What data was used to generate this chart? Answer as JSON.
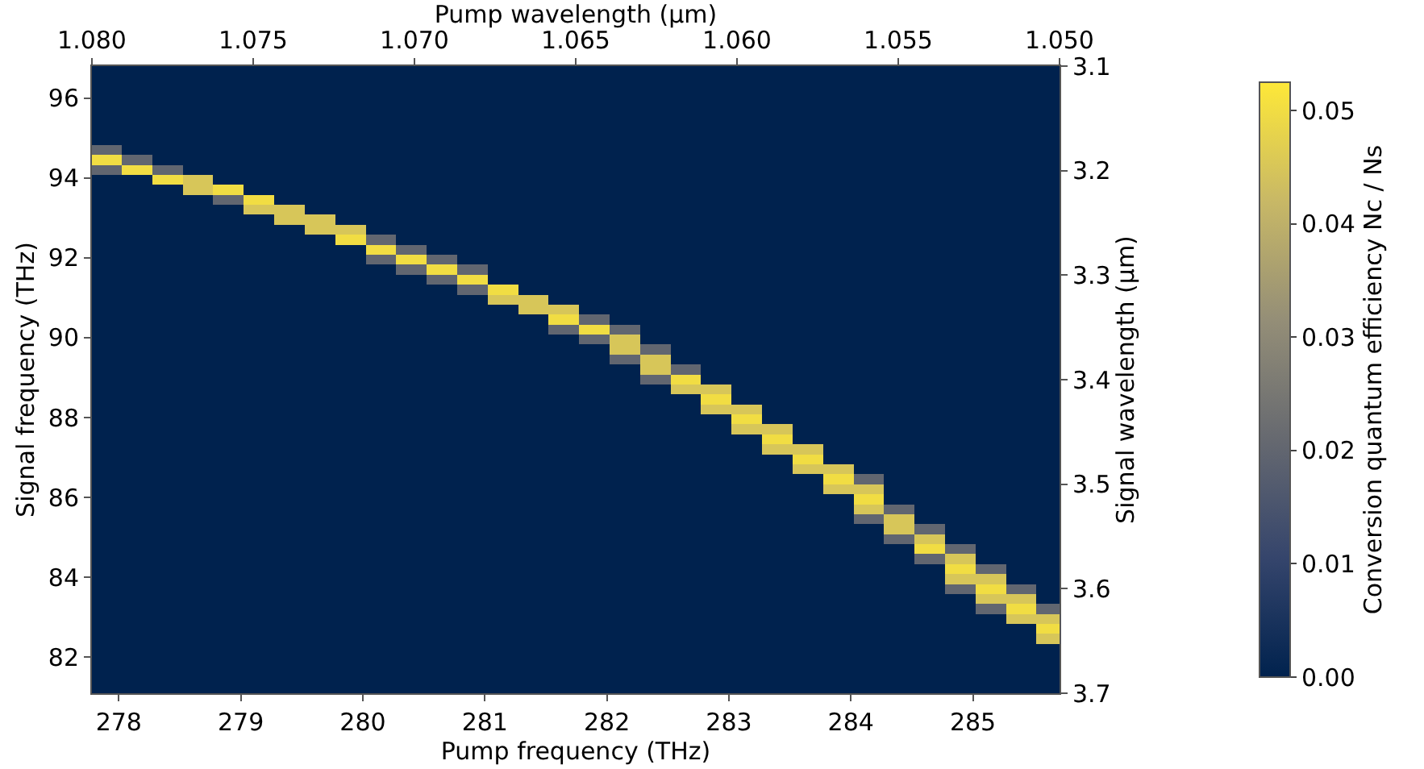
{
  "chart_data": {
    "type": "heatmap",
    "xlabel": "Pump frequency (THz)",
    "ylabel": "Signal frequency (THz)",
    "x2label": "Pump wavelength (µm)",
    "y2label": "Signal wavelength (µm)",
    "clabel": "Conversion quantum efficiency Nc / Ns",
    "x": [
      277.9,
      278.15,
      278.4,
      278.65,
      278.9,
      279.15,
      279.4,
      279.65,
      279.9,
      280.15,
      280.4,
      280.65,
      280.9,
      281.15,
      281.4,
      281.65,
      281.9,
      282.15,
      282.4,
      282.65,
      282.9,
      283.15,
      283.4,
      283.65,
      283.9,
      284.15,
      284.4,
      284.65,
      284.9,
      285.15,
      285.4,
      285.65
    ],
    "y": [
      96.7,
      96.45,
      96.2,
      95.95,
      95.7,
      95.45,
      95.2,
      94.95,
      94.7,
      94.45,
      94.2,
      93.95,
      93.7,
      93.45,
      93.2,
      92.95,
      92.7,
      92.45,
      92.2,
      91.95,
      91.7,
      91.45,
      91.2,
      90.95,
      90.7,
      90.45,
      90.2,
      89.95,
      89.7,
      89.45,
      89.2,
      88.95,
      88.7,
      88.45,
      88.2,
      87.95,
      87.7,
      87.45,
      87.2,
      86.95,
      86.7,
      86.45,
      86.2,
      85.95,
      85.7,
      85.45,
      85.2,
      84.95,
      84.7,
      84.45,
      84.2,
      83.95,
      83.7,
      83.45,
      83.2,
      82.95,
      82.7,
      82.45,
      82.2,
      81.95,
      81.7,
      81.45,
      81.2
    ],
    "cells": [
      [
        0,
        0,
        0,
        0,
        0,
        0,
        0,
        0,
        0,
        0,
        0,
        0,
        0,
        0,
        0,
        0,
        0,
        0,
        0,
        0,
        0,
        0,
        0,
        0,
        0,
        0,
        0,
        0,
        0,
        0,
        0,
        0
      ],
      [
        0,
        0,
        0,
        0,
        0,
        0,
        0,
        0,
        0,
        0,
        0,
        0,
        0,
        0,
        0,
        0,
        0,
        0,
        0,
        0,
        0,
        0,
        0,
        0,
        0,
        0,
        0,
        0,
        0,
        0,
        0,
        0
      ],
      [
        0,
        0,
        0,
        0,
        0,
        0,
        0,
        0,
        0,
        0,
        0,
        0,
        0,
        0,
        0,
        0,
        0,
        0,
        0,
        0,
        0,
        0,
        0,
        0,
        0,
        0,
        0,
        0,
        0,
        0,
        0,
        0
      ],
      [
        0,
        0,
        0,
        0,
        0,
        0,
        0,
        0,
        0,
        0,
        0,
        0,
        0,
        0,
        0,
        0,
        0,
        0,
        0,
        0,
        0,
        0,
        0,
        0,
        0,
        0,
        0,
        0,
        0,
        0,
        0,
        0
      ],
      [
        0,
        0,
        0,
        0,
        0,
        0,
        0,
        0,
        0,
        0,
        0,
        0,
        0,
        0,
        0,
        0,
        0,
        0,
        0,
        0,
        0,
        0,
        0,
        0,
        0,
        0,
        0,
        0,
        0,
        0,
        0,
        0
      ],
      [
        0,
        0,
        0,
        0,
        0,
        0,
        0,
        0,
        0,
        0,
        0,
        0,
        0,
        0,
        0,
        0,
        0,
        0,
        0,
        0,
        0,
        0,
        0,
        0,
        0,
        0,
        0,
        0,
        0,
        0,
        0,
        0
      ],
      [
        0,
        0,
        0,
        0,
        0,
        0,
        0,
        0,
        0,
        0,
        0,
        0,
        0,
        0,
        0,
        0,
        0,
        0,
        0,
        0,
        0,
        0,
        0,
        0,
        0,
        0,
        0,
        0,
        0,
        0,
        0,
        0
      ],
      [
        0,
        0,
        0,
        0,
        0,
        0,
        0,
        0,
        0,
        0,
        0,
        0,
        0,
        0,
        0,
        0,
        0,
        0,
        0,
        0,
        0,
        0,
        0,
        0,
        0,
        0,
        0,
        0,
        0,
        0,
        0,
        0
      ],
      [
        0.02,
        0,
        0,
        0,
        0,
        0,
        0,
        0,
        0,
        0,
        0,
        0,
        0,
        0,
        0,
        0,
        0,
        0,
        0,
        0,
        0,
        0,
        0,
        0,
        0,
        0,
        0,
        0,
        0,
        0,
        0,
        0
      ],
      [
        0.05,
        0.02,
        0,
        0,
        0,
        0,
        0,
        0,
        0,
        0,
        0,
        0,
        0,
        0,
        0,
        0,
        0,
        0,
        0,
        0,
        0,
        0,
        0,
        0,
        0,
        0,
        0,
        0,
        0,
        0,
        0,
        0
      ],
      [
        0.02,
        0.05,
        0.02,
        0,
        0,
        0,
        0,
        0,
        0,
        0,
        0,
        0,
        0,
        0,
        0,
        0,
        0,
        0,
        0,
        0,
        0,
        0,
        0,
        0,
        0,
        0,
        0,
        0,
        0,
        0,
        0,
        0
      ],
      [
        0,
        0,
        0.05,
        0.045,
        0,
        0,
        0,
        0,
        0,
        0,
        0,
        0,
        0,
        0,
        0,
        0,
        0,
        0,
        0,
        0,
        0,
        0,
        0,
        0,
        0,
        0,
        0,
        0,
        0,
        0,
        0,
        0
      ],
      [
        0,
        0,
        0,
        0.045,
        0.05,
        0,
        0,
        0,
        0,
        0,
        0,
        0,
        0,
        0,
        0,
        0,
        0,
        0,
        0,
        0,
        0,
        0,
        0,
        0,
        0,
        0,
        0,
        0,
        0,
        0,
        0,
        0
      ],
      [
        0,
        0,
        0,
        0,
        0.02,
        0.05,
        0,
        0,
        0,
        0,
        0,
        0,
        0,
        0,
        0,
        0,
        0,
        0,
        0,
        0,
        0,
        0,
        0,
        0,
        0,
        0,
        0,
        0,
        0,
        0,
        0,
        0
      ],
      [
        0,
        0,
        0,
        0,
        0,
        0.045,
        0.045,
        0,
        0,
        0,
        0,
        0,
        0,
        0,
        0,
        0,
        0,
        0,
        0,
        0,
        0,
        0,
        0,
        0,
        0,
        0,
        0,
        0,
        0,
        0,
        0,
        0
      ],
      [
        0,
        0,
        0,
        0,
        0,
        0,
        0.045,
        0.045,
        0,
        0,
        0,
        0,
        0,
        0,
        0,
        0,
        0,
        0,
        0,
        0,
        0,
        0,
        0,
        0,
        0,
        0,
        0,
        0,
        0,
        0,
        0,
        0
      ],
      [
        0,
        0,
        0,
        0,
        0,
        0,
        0,
        0.045,
        0.045,
        0,
        0,
        0,
        0,
        0,
        0,
        0,
        0,
        0,
        0,
        0,
        0,
        0,
        0,
        0,
        0,
        0,
        0,
        0,
        0,
        0,
        0,
        0
      ],
      [
        0,
        0,
        0,
        0,
        0,
        0,
        0,
        0,
        0.05,
        0.02,
        0,
        0,
        0,
        0,
        0,
        0,
        0,
        0,
        0,
        0,
        0,
        0,
        0,
        0,
        0,
        0,
        0,
        0,
        0,
        0,
        0,
        0
      ],
      [
        0,
        0,
        0,
        0,
        0,
        0,
        0,
        0,
        0,
        0.05,
        0.02,
        0,
        0,
        0,
        0,
        0,
        0,
        0,
        0,
        0,
        0,
        0,
        0,
        0,
        0,
        0,
        0,
        0,
        0,
        0,
        0,
        0
      ],
      [
        0,
        0,
        0,
        0,
        0,
        0,
        0,
        0,
        0,
        0.02,
        0.05,
        0.02,
        0,
        0,
        0,
        0,
        0,
        0,
        0,
        0,
        0,
        0,
        0,
        0,
        0,
        0,
        0,
        0,
        0,
        0,
        0,
        0
      ],
      [
        0,
        0,
        0,
        0,
        0,
        0,
        0,
        0,
        0,
        0,
        0.02,
        0.05,
        0.02,
        0,
        0,
        0,
        0,
        0,
        0,
        0,
        0,
        0,
        0,
        0,
        0,
        0,
        0,
        0,
        0,
        0,
        0,
        0
      ],
      [
        0,
        0,
        0,
        0,
        0,
        0,
        0,
        0,
        0,
        0,
        0,
        0.02,
        0.05,
        0,
        0,
        0,
        0,
        0,
        0,
        0,
        0,
        0,
        0,
        0,
        0,
        0,
        0,
        0,
        0,
        0,
        0,
        0
      ],
      [
        0,
        0,
        0,
        0,
        0,
        0,
        0,
        0,
        0,
        0,
        0,
        0,
        0.02,
        0.05,
        0,
        0,
        0,
        0,
        0,
        0,
        0,
        0,
        0,
        0,
        0,
        0,
        0,
        0,
        0,
        0,
        0,
        0
      ],
      [
        0,
        0,
        0,
        0,
        0,
        0,
        0,
        0,
        0,
        0,
        0,
        0,
        0,
        0.045,
        0.045,
        0,
        0,
        0,
        0,
        0,
        0,
        0,
        0,
        0,
        0,
        0,
        0,
        0,
        0,
        0,
        0,
        0
      ],
      [
        0,
        0,
        0,
        0,
        0,
        0,
        0,
        0,
        0,
        0,
        0,
        0,
        0,
        0,
        0.045,
        0.045,
        0,
        0,
        0,
        0,
        0,
        0,
        0,
        0,
        0,
        0,
        0,
        0,
        0,
        0,
        0,
        0
      ],
      [
        0,
        0,
        0,
        0,
        0,
        0,
        0,
        0,
        0,
        0,
        0,
        0,
        0,
        0,
        0,
        0.05,
        0.02,
        0,
        0,
        0,
        0,
        0,
        0,
        0,
        0,
        0,
        0,
        0,
        0,
        0,
        0,
        0
      ],
      [
        0,
        0,
        0,
        0,
        0,
        0,
        0,
        0,
        0,
        0,
        0,
        0,
        0,
        0,
        0,
        0.02,
        0.05,
        0.02,
        0,
        0,
        0,
        0,
        0,
        0,
        0,
        0,
        0,
        0,
        0,
        0,
        0,
        0
      ],
      [
        0,
        0,
        0,
        0,
        0,
        0,
        0,
        0,
        0,
        0,
        0,
        0,
        0,
        0,
        0,
        0,
        0.02,
        0.045,
        0,
        0,
        0,
        0,
        0,
        0,
        0,
        0,
        0,
        0,
        0,
        0,
        0,
        0
      ],
      [
        0,
        0,
        0,
        0,
        0,
        0,
        0,
        0,
        0,
        0,
        0,
        0,
        0,
        0,
        0,
        0,
        0,
        0.045,
        0.02,
        0,
        0,
        0,
        0,
        0,
        0,
        0,
        0,
        0,
        0,
        0,
        0,
        0
      ],
      [
        0,
        0,
        0,
        0,
        0,
        0,
        0,
        0,
        0,
        0,
        0,
        0,
        0,
        0,
        0,
        0,
        0,
        0.02,
        0.045,
        0,
        0,
        0,
        0,
        0,
        0,
        0,
        0,
        0,
        0,
        0,
        0,
        0
      ],
      [
        0,
        0,
        0,
        0,
        0,
        0,
        0,
        0,
        0,
        0,
        0,
        0,
        0,
        0,
        0,
        0,
        0,
        0,
        0.045,
        0.02,
        0,
        0,
        0,
        0,
        0,
        0,
        0,
        0,
        0,
        0,
        0,
        0
      ],
      [
        0,
        0,
        0,
        0,
        0,
        0,
        0,
        0,
        0,
        0,
        0,
        0,
        0,
        0,
        0,
        0,
        0,
        0,
        0.02,
        0.05,
        0,
        0,
        0,
        0,
        0,
        0,
        0,
        0,
        0,
        0,
        0,
        0
      ],
      [
        0,
        0,
        0,
        0,
        0,
        0,
        0,
        0,
        0,
        0,
        0,
        0,
        0,
        0,
        0,
        0,
        0,
        0,
        0,
        0.045,
        0.045,
        0,
        0,
        0,
        0,
        0,
        0,
        0,
        0,
        0,
        0,
        0
      ],
      [
        0,
        0,
        0,
        0,
        0,
        0,
        0,
        0,
        0,
        0,
        0,
        0,
        0,
        0,
        0,
        0,
        0,
        0,
        0,
        0,
        0.05,
        0,
        0,
        0,
        0,
        0,
        0,
        0,
        0,
        0,
        0,
        0
      ],
      [
        0,
        0,
        0,
        0,
        0,
        0,
        0,
        0,
        0,
        0,
        0,
        0,
        0,
        0,
        0,
        0,
        0,
        0,
        0,
        0,
        0.045,
        0.045,
        0,
        0,
        0,
        0,
        0,
        0,
        0,
        0,
        0,
        0
      ],
      [
        0,
        0,
        0,
        0,
        0,
        0,
        0,
        0,
        0,
        0,
        0,
        0,
        0,
        0,
        0,
        0,
        0,
        0,
        0,
        0,
        0,
        0.05,
        0,
        0,
        0,
        0,
        0,
        0,
        0,
        0,
        0,
        0
      ],
      [
        0,
        0,
        0,
        0,
        0,
        0,
        0,
        0,
        0,
        0,
        0,
        0,
        0,
        0,
        0,
        0,
        0,
        0,
        0,
        0,
        0,
        0.045,
        0.045,
        0,
        0,
        0,
        0,
        0,
        0,
        0,
        0,
        0
      ],
      [
        0,
        0,
        0,
        0,
        0,
        0,
        0,
        0,
        0,
        0,
        0,
        0,
        0,
        0,
        0,
        0,
        0,
        0,
        0,
        0,
        0,
        0,
        0.05,
        0,
        0,
        0,
        0,
        0,
        0,
        0,
        0,
        0
      ],
      [
        0,
        0,
        0,
        0,
        0,
        0,
        0,
        0,
        0,
        0,
        0,
        0,
        0,
        0,
        0,
        0,
        0,
        0,
        0,
        0,
        0,
        0,
        0.045,
        0.045,
        0,
        0,
        0,
        0,
        0,
        0,
        0,
        0
      ],
      [
        0,
        0,
        0,
        0,
        0,
        0,
        0,
        0,
        0,
        0,
        0,
        0,
        0,
        0,
        0,
        0,
        0,
        0,
        0,
        0,
        0,
        0,
        0,
        0.05,
        0,
        0,
        0,
        0,
        0,
        0,
        0,
        0
      ],
      [
        0,
        0,
        0,
        0,
        0,
        0,
        0,
        0,
        0,
        0,
        0,
        0,
        0,
        0,
        0,
        0,
        0,
        0,
        0,
        0,
        0,
        0,
        0,
        0.045,
        0.045,
        0,
        0,
        0,
        0,
        0,
        0,
        0
      ],
      [
        0,
        0,
        0,
        0,
        0,
        0,
        0,
        0,
        0,
        0,
        0,
        0,
        0,
        0,
        0,
        0,
        0,
        0,
        0,
        0,
        0,
        0,
        0,
        0,
        0.05,
        0.02,
        0,
        0,
        0,
        0,
        0,
        0
      ],
      [
        0,
        0,
        0,
        0,
        0,
        0,
        0,
        0,
        0,
        0,
        0,
        0,
        0,
        0,
        0,
        0,
        0,
        0,
        0,
        0,
        0,
        0,
        0,
        0,
        0.045,
        0.045,
        0,
        0,
        0,
        0,
        0,
        0
      ],
      [
        0,
        0,
        0,
        0,
        0,
        0,
        0,
        0,
        0,
        0,
        0,
        0,
        0,
        0,
        0,
        0,
        0,
        0,
        0,
        0,
        0,
        0,
        0,
        0,
        0,
        0.05,
        0,
        0,
        0,
        0,
        0,
        0
      ],
      [
        0,
        0,
        0,
        0,
        0,
        0,
        0,
        0,
        0,
        0,
        0,
        0,
        0,
        0,
        0,
        0,
        0,
        0,
        0,
        0,
        0,
        0,
        0,
        0,
        0,
        0.045,
        0.02,
        0,
        0,
        0,
        0,
        0
      ],
      [
        0,
        0,
        0,
        0,
        0,
        0,
        0,
        0,
        0,
        0,
        0,
        0,
        0,
        0,
        0,
        0,
        0,
        0,
        0,
        0,
        0,
        0,
        0,
        0,
        0,
        0.02,
        0.045,
        0,
        0,
        0,
        0,
        0
      ],
      [
        0,
        0,
        0,
        0,
        0,
        0,
        0,
        0,
        0,
        0,
        0,
        0,
        0,
        0,
        0,
        0,
        0,
        0,
        0,
        0,
        0,
        0,
        0,
        0,
        0,
        0,
        0.045,
        0.02,
        0,
        0,
        0,
        0
      ],
      [
        0,
        0,
        0,
        0,
        0,
        0,
        0,
        0,
        0,
        0,
        0,
        0,
        0,
        0,
        0,
        0,
        0,
        0,
        0,
        0,
        0,
        0,
        0,
        0,
        0,
        0,
        0.02,
        0.045,
        0,
        0,
        0,
        0
      ],
      [
        0,
        0,
        0,
        0,
        0,
        0,
        0,
        0,
        0,
        0,
        0,
        0,
        0,
        0,
        0,
        0,
        0,
        0,
        0,
        0,
        0,
        0,
        0,
        0,
        0,
        0,
        0,
        0.05,
        0.02,
        0,
        0,
        0
      ],
      [
        0,
        0,
        0,
        0,
        0,
        0,
        0,
        0,
        0,
        0,
        0,
        0,
        0,
        0,
        0,
        0,
        0,
        0,
        0,
        0,
        0,
        0,
        0,
        0,
        0,
        0,
        0,
        0.02,
        0.045,
        0,
        0,
        0
      ],
      [
        0,
        0,
        0,
        0,
        0,
        0,
        0,
        0,
        0,
        0,
        0,
        0,
        0,
        0,
        0,
        0,
        0,
        0,
        0,
        0,
        0,
        0,
        0,
        0,
        0,
        0,
        0,
        0,
        0.05,
        0.02,
        0,
        0
      ],
      [
        0,
        0,
        0,
        0,
        0,
        0,
        0,
        0,
        0,
        0,
        0,
        0,
        0,
        0,
        0,
        0,
        0,
        0,
        0,
        0,
        0,
        0,
        0,
        0,
        0,
        0,
        0,
        0,
        0.045,
        0.045,
        0,
        0
      ],
      [
        0,
        0,
        0,
        0,
        0,
        0,
        0,
        0,
        0,
        0,
        0,
        0,
        0,
        0,
        0,
        0,
        0,
        0,
        0,
        0,
        0,
        0,
        0,
        0,
        0,
        0,
        0,
        0,
        0.02,
        0.05,
        0.02,
        0
      ],
      [
        0,
        0,
        0,
        0,
        0,
        0,
        0,
        0,
        0,
        0,
        0,
        0,
        0,
        0,
        0,
        0,
        0,
        0,
        0,
        0,
        0,
        0,
        0,
        0,
        0,
        0,
        0,
        0,
        0,
        0.045,
        0.045,
        0
      ],
      [
        0,
        0,
        0,
        0,
        0,
        0,
        0,
        0,
        0,
        0,
        0,
        0,
        0,
        0,
        0,
        0,
        0,
        0,
        0,
        0,
        0,
        0,
        0,
        0,
        0,
        0,
        0,
        0,
        0,
        0.02,
        0.05,
        0.02
      ],
      [
        0,
        0,
        0,
        0,
        0,
        0,
        0,
        0,
        0,
        0,
        0,
        0,
        0,
        0,
        0,
        0,
        0,
        0,
        0,
        0,
        0,
        0,
        0,
        0,
        0,
        0,
        0,
        0,
        0,
        0,
        0.045,
        0.045
      ],
      [
        0,
        0,
        0,
        0,
        0,
        0,
        0,
        0,
        0,
        0,
        0,
        0,
        0,
        0,
        0,
        0,
        0,
        0,
        0,
        0,
        0,
        0,
        0,
        0,
        0,
        0,
        0,
        0,
        0,
        0,
        0,
        0.05
      ],
      [
        0,
        0,
        0,
        0,
        0,
        0,
        0,
        0,
        0,
        0,
        0,
        0,
        0,
        0,
        0,
        0,
        0,
        0,
        0,
        0,
        0,
        0,
        0,
        0,
        0,
        0,
        0,
        0,
        0,
        0,
        0,
        0.045
      ],
      [
        0,
        0,
        0,
        0,
        0,
        0,
        0,
        0,
        0,
        0,
        0,
        0,
        0,
        0,
        0,
        0,
        0,
        0,
        0,
        0,
        0,
        0,
        0,
        0,
        0,
        0,
        0,
        0,
        0,
        0,
        0,
        0
      ],
      [
        0,
        0,
        0,
        0,
        0,
        0,
        0,
        0,
        0,
        0,
        0,
        0,
        0,
        0,
        0,
        0,
        0,
        0,
        0,
        0,
        0,
        0,
        0,
        0,
        0,
        0,
        0,
        0,
        0,
        0,
        0,
        0
      ],
      [
        0,
        0,
        0,
        0,
        0,
        0,
        0,
        0,
        0,
        0,
        0,
        0,
        0,
        0,
        0,
        0,
        0,
        0,
        0,
        0,
        0,
        0,
        0,
        0,
        0,
        0,
        0,
        0,
        0,
        0,
        0,
        0
      ],
      [
        0,
        0,
        0,
        0,
        0,
        0,
        0,
        0,
        0,
        0,
        0,
        0,
        0,
        0,
        0,
        0,
        0,
        0,
        0,
        0,
        0,
        0,
        0,
        0,
        0,
        0,
        0,
        0,
        0,
        0,
        0,
        0
      ],
      [
        0,
        0,
        0,
        0,
        0,
        0,
        0,
        0,
        0,
        0,
        0,
        0,
        0,
        0,
        0,
        0,
        0,
        0,
        0,
        0,
        0,
        0,
        0,
        0,
        0,
        0,
        0,
        0,
        0,
        0,
        0,
        0
      ]
    ],
    "colors": [
      "#00224e",
      "#35456c",
      "#666970",
      "#948e77",
      "#c8b866",
      "#fee838"
    ],
    "xlim": [
      277.78,
      285.71
    ],
    "xticks": [
      278,
      279,
      280,
      281,
      282,
      283,
      284,
      285
    ],
    "ylim": [
      81.1,
      96.8
    ],
    "yticks": [
      82,
      84,
      86,
      88,
      90,
      92,
      94,
      96
    ],
    "x2lim": [
      1.08,
      1.05
    ],
    "x2ticks": [
      {
        "value": 1.08,
        "label": "1.080"
      },
      {
        "value": 1.075,
        "label": "1.075"
      },
      {
        "value": 1.07,
        "label": "1.070"
      },
      {
        "value": 1.065,
        "label": "1.065"
      },
      {
        "value": 1.06,
        "label": "1.060"
      },
      {
        "value": 1.055,
        "label": "1.055"
      },
      {
        "value": 1.05,
        "label": "1.050"
      }
    ],
    "y2lim": [
      3.7,
      3.1
    ],
    "y2ticks": [
      3.1,
      3.2,
      3.3,
      3.4,
      3.5,
      3.6,
      3.7
    ],
    "clim": [
      0,
      0.0525
    ],
    "cticks": [
      {
        "value": 0,
        "label": "0.00"
      },
      {
        "value": 0.01,
        "label": "0.01"
      },
      {
        "value": 0.02,
        "label": "0.02"
      },
      {
        "value": 0.03,
        "label": "0.03"
      },
      {
        "value": 0.04,
        "label": "0.04"
      },
      {
        "value": 0.05,
        "label": "0.05"
      }
    ]
  }
}
